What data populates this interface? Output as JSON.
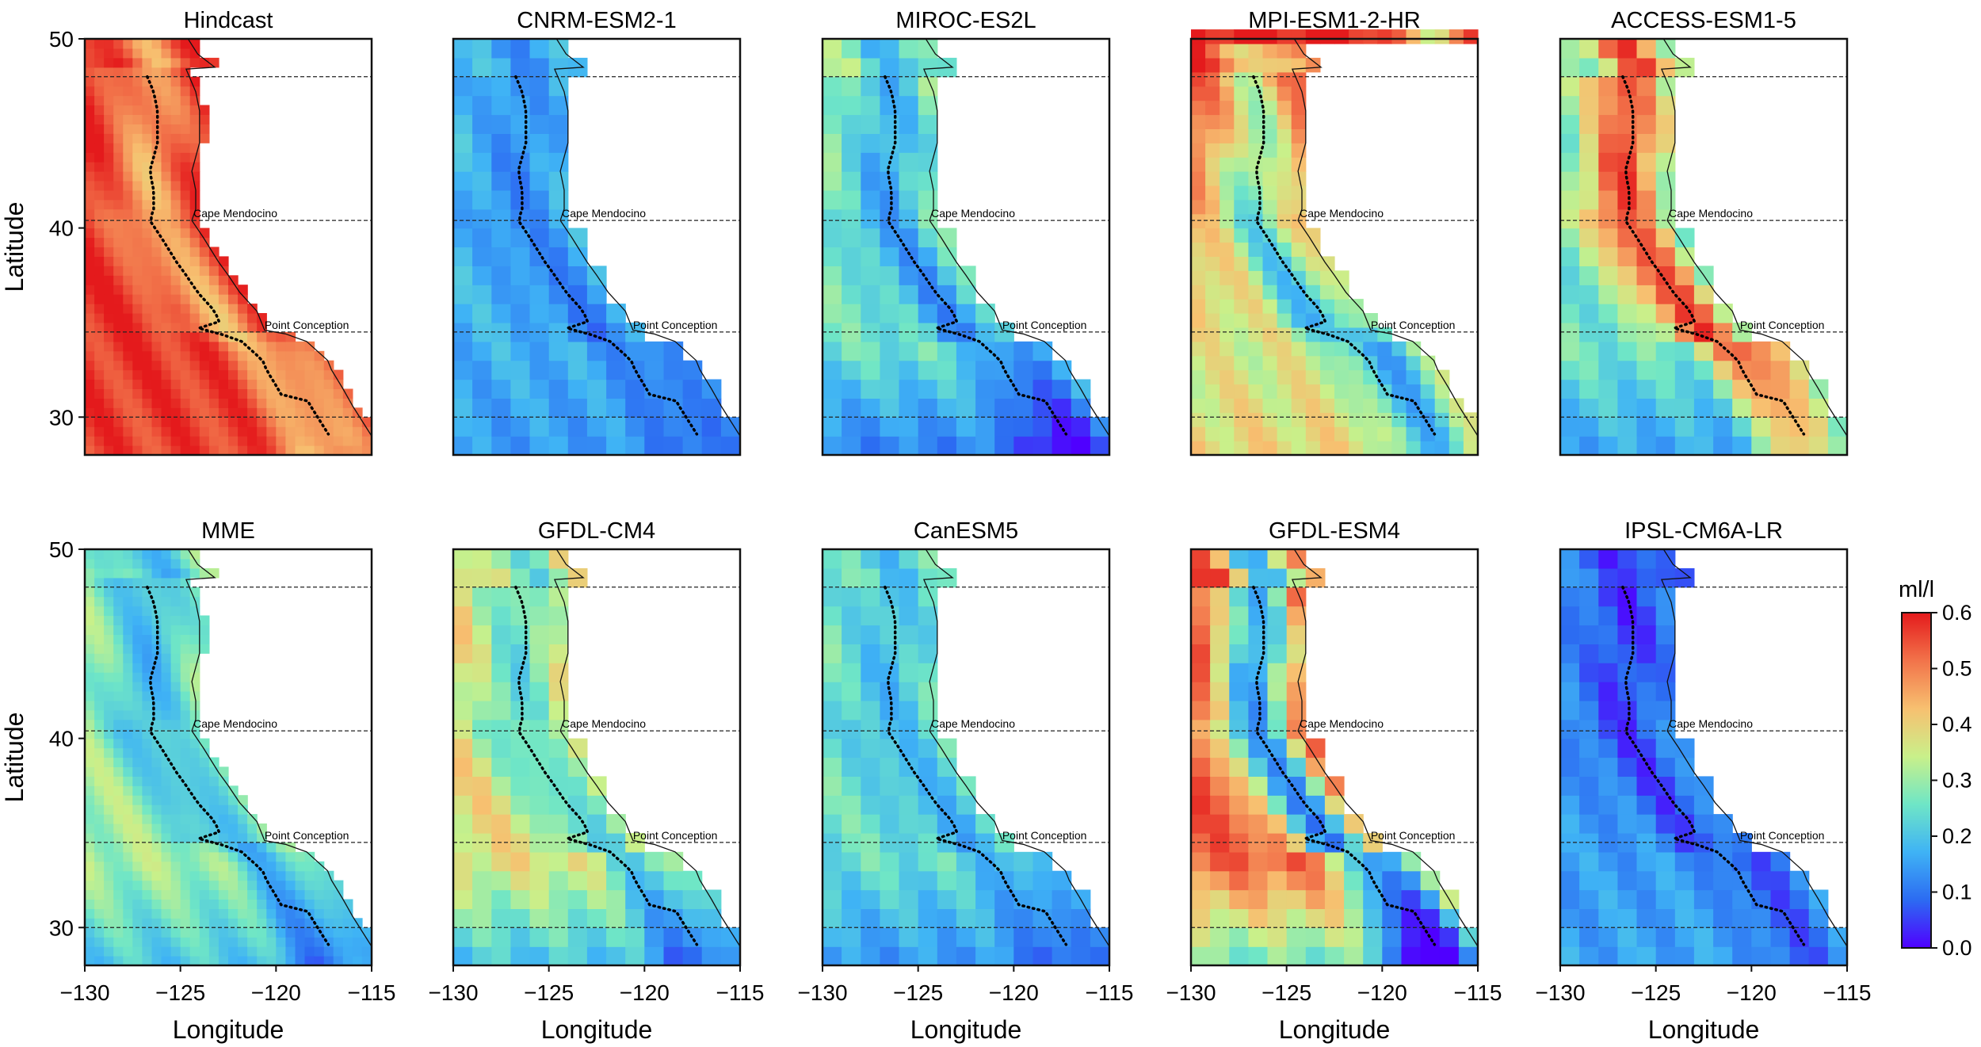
{
  "figure": {
    "x_label": "Longitude",
    "y_label": "Latitude",
    "colorbar": {
      "title": "ml/l",
      "range": [
        0.0,
        0.6
      ],
      "ticks": [
        "0.0",
        "0.1",
        "0.2",
        "0.3",
        "0.4",
        "0.5",
        "0.6"
      ],
      "colormap": "jet",
      "colors": [
        "#4f00ff",
        "#2c6bf2",
        "#3fb3f5",
        "#6fe6c6",
        "#c9f08a",
        "#f7c070",
        "#f2734a",
        "#e41a1c"
      ]
    },
    "x_ticks": [
      "−130",
      "−125",
      "−120",
      "−115"
    ],
    "y_ticks": [
      "30",
      "40",
      "50"
    ],
    "region_labels": [
      "Cape Mendocino",
      "Point Conception"
    ]
  },
  "chart_data": {
    "type": "heatmap",
    "xlim": [
      -130,
      -115
    ],
    "ylim": [
      28,
      50
    ],
    "reference_latitudes": [
      48,
      40.4,
      34.5,
      30
    ],
    "panels": [
      {
        "title": "Hindcast",
        "offshore": 0.58,
        "coastal": 0.45,
        "north_bias": 0.02,
        "south_bias": 0.0,
        "resolution": "fine"
      },
      {
        "title": "CNRM-ESM2-1",
        "offshore": 0.2,
        "coastal": 0.13,
        "north_bias": 0.02,
        "south_bias": -0.02,
        "resolution": "coarse"
      },
      {
        "title": "MIROC-ES2L",
        "offshore": 0.3,
        "coastal": 0.16,
        "north_bias": 0.05,
        "south_bias": -0.12,
        "resolution": "coarse"
      },
      {
        "title": "MPI-ESM1-2-HR",
        "offshore": 0.45,
        "coastal": 0.25,
        "north_bias": 0.15,
        "south_bias": 0.1,
        "resolution": "medium"
      },
      {
        "title": "ACCESS-ESM1-5",
        "offshore": 0.28,
        "coastal": 0.55,
        "north_bias": 0.0,
        "south_bias": -0.1,
        "resolution": "coarse"
      },
      {
        "title": "MME",
        "offshore": 0.33,
        "coastal": 0.2,
        "north_bias": 0.0,
        "south_bias": -0.1,
        "resolution": "fine"
      },
      {
        "title": "GFDL-CM4",
        "offshore": 0.4,
        "coastal": 0.25,
        "north_bias": 0.02,
        "south_bias": -0.15,
        "resolution": "coarse"
      },
      {
        "title": "CanESM5",
        "offshore": 0.28,
        "coastal": 0.2,
        "north_bias": 0.02,
        "south_bias": -0.1,
        "resolution": "coarse"
      },
      {
        "title": "GFDL-ESM4",
        "offshore": 0.55,
        "coastal": 0.15,
        "north_bias": 0.05,
        "south_bias": -0.2,
        "resolution": "coarse"
      },
      {
        "title": "IPSL-CM6A-LR",
        "offshore": 0.15,
        "coastal": 0.06,
        "north_bias": -0.02,
        "south_bias": 0.0,
        "resolution": "coarse"
      }
    ]
  }
}
